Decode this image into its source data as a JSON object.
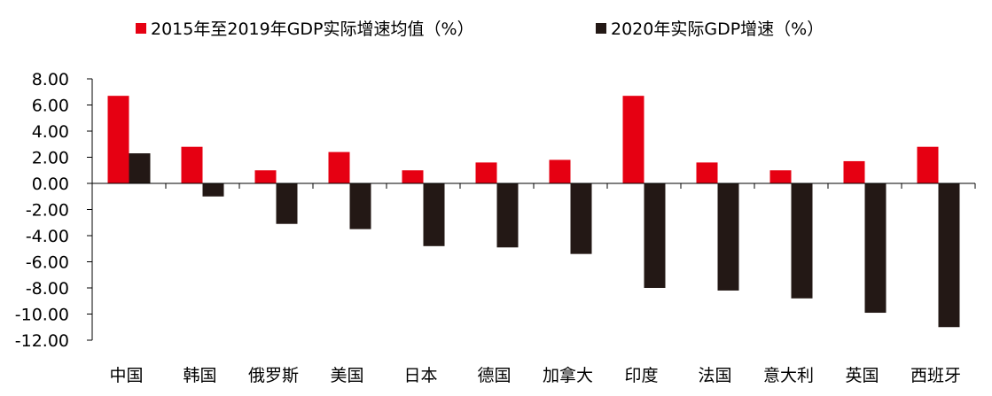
{
  "chart_data": {
    "type": "bar",
    "categories": [
      "中国",
      "韩国",
      "俄罗斯",
      "美国",
      "日本",
      "德国",
      "加拿大",
      "印度",
      "法国",
      "意大利",
      "英国",
      "西班牙"
    ],
    "series": [
      {
        "name": "2015年至2019年GDP实际增速均值（%）",
        "color": "#e60012",
        "values": [
          6.7,
          2.8,
          1.0,
          2.4,
          1.0,
          1.6,
          1.8,
          6.7,
          1.6,
          1.0,
          1.7,
          2.8
        ]
      },
      {
        "name": "2020年实际GDP增速（%）",
        "color": "#231815",
        "values": [
          2.3,
          -1.0,
          -3.1,
          -3.5,
          -4.8,
          -4.9,
          -5.4,
          -8.0,
          -8.2,
          -8.8,
          -9.9,
          -11.0
        ]
      }
    ],
    "yticks": [
      "8.00",
      "6.00",
      "4.00",
      "2.00",
      "0.00",
      "-2.00",
      "-4.00",
      "-6.00",
      "-8.00",
      "-10.00",
      "-12.00"
    ],
    "ylim": [
      -12,
      8
    ],
    "title": "",
    "xlabel": "",
    "ylabel": "",
    "legend_position": "top"
  }
}
